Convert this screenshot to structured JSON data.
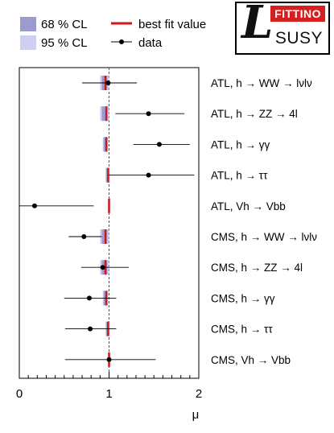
{
  "legend": {
    "cl68": "68 % CL",
    "cl95": "95 % CL",
    "best_fit": "best fit value",
    "data": "data"
  },
  "logo": {
    "top": "FITTINO",
    "bottom": "SUSY",
    "script_letter": "L"
  },
  "colors": {
    "cl68": "#9b9bd0",
    "cl95": "#cfcff2",
    "best_fit": "#d01818",
    "data": "#000000",
    "sm_line": "#555555",
    "logo_red": "#d62020"
  },
  "chart_data": {
    "type": "scatter",
    "xlabel": "μ",
    "xlim": [
      0,
      2
    ],
    "xticks": [
      "0",
      "1",
      "2"
    ],
    "reference_line": 1,
    "categories": [
      "ATL, h → WW → lνlν",
      "ATL, h → ZZ → 4l",
      "ATL, h → γγ",
      "ATL, h → ττ",
      "ATL, Vh → Vbb",
      "CMS, h → WW → lνlν",
      "CMS, h → ZZ → 4l",
      "CMS, h → γγ",
      "CMS, h → ττ",
      "CMS, Vh → Vbb"
    ],
    "series": [
      {
        "name": "data",
        "values": [
          0.99,
          1.44,
          1.56,
          1.44,
          0.17,
          0.72,
          0.93,
          0.78,
          0.79,
          1.0
        ],
        "err_low": [
          0.29,
          0.37,
          0.29,
          0.44,
          0.64,
          0.17,
          0.24,
          0.28,
          0.28,
          0.49
        ],
        "err_high": [
          0.32,
          0.4,
          0.34,
          0.51,
          0.66,
          0.2,
          0.29,
          0.3,
          0.29,
          0.52
        ]
      },
      {
        "name": "best fit value",
        "values": [
          0.96,
          0.97,
          0.97,
          0.99,
          1.0,
          0.96,
          0.96,
          0.97,
          0.99,
          1.0
        ]
      },
      {
        "name": "68 % CL",
        "low": [
          0.92,
          0.92,
          0.94,
          0.97,
          0.995,
          0.92,
          0.92,
          0.94,
          0.97,
          0.995
        ],
        "high": [
          0.98,
          0.98,
          0.98,
          1.0,
          1.005,
          0.98,
          0.98,
          0.98,
          1.0,
          1.005
        ]
      },
      {
        "name": "95 % CL",
        "low": [
          0.9,
          0.9,
          0.93,
          0.96,
          0.99,
          0.9,
          0.9,
          0.93,
          0.96,
          0.99
        ],
        "high": [
          1.0,
          1.0,
          0.99,
          1.01,
          1.01,
          1.0,
          1.0,
          0.99,
          1.01,
          1.01
        ]
      }
    ]
  }
}
